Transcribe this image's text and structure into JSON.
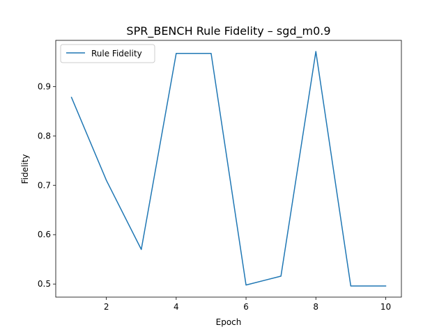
{
  "chart_data": {
    "type": "line",
    "title": "SPR_BENCH Rule Fidelity – sgd_m0.9",
    "xlabel": "Epoch",
    "ylabel": "Fidelity",
    "xlim": [
      0.55,
      10.45
    ],
    "ylim": [
      0.4735,
      0.9935
    ],
    "xticks": [
      2,
      4,
      6,
      8,
      10
    ],
    "yticks": [
      0.5,
      0.6,
      0.7,
      0.8,
      0.9
    ],
    "xtick_labels": [
      "2",
      "4",
      "6",
      "8",
      "10"
    ],
    "ytick_labels": [
      "0.5",
      "0.6",
      "0.7",
      "0.8",
      "0.9"
    ],
    "grid": false,
    "legend_position": "upper-left",
    "series": [
      {
        "name": "Rule Fidelity",
        "color": "#1f77b4",
        "x": [
          1,
          2,
          3,
          4,
          5,
          6,
          7,
          8,
          9,
          10
        ],
        "y": [
          0.878,
          0.71,
          0.57,
          0.967,
          0.967,
          0.498,
          0.516,
          0.971,
          0.496,
          0.496
        ]
      }
    ]
  }
}
